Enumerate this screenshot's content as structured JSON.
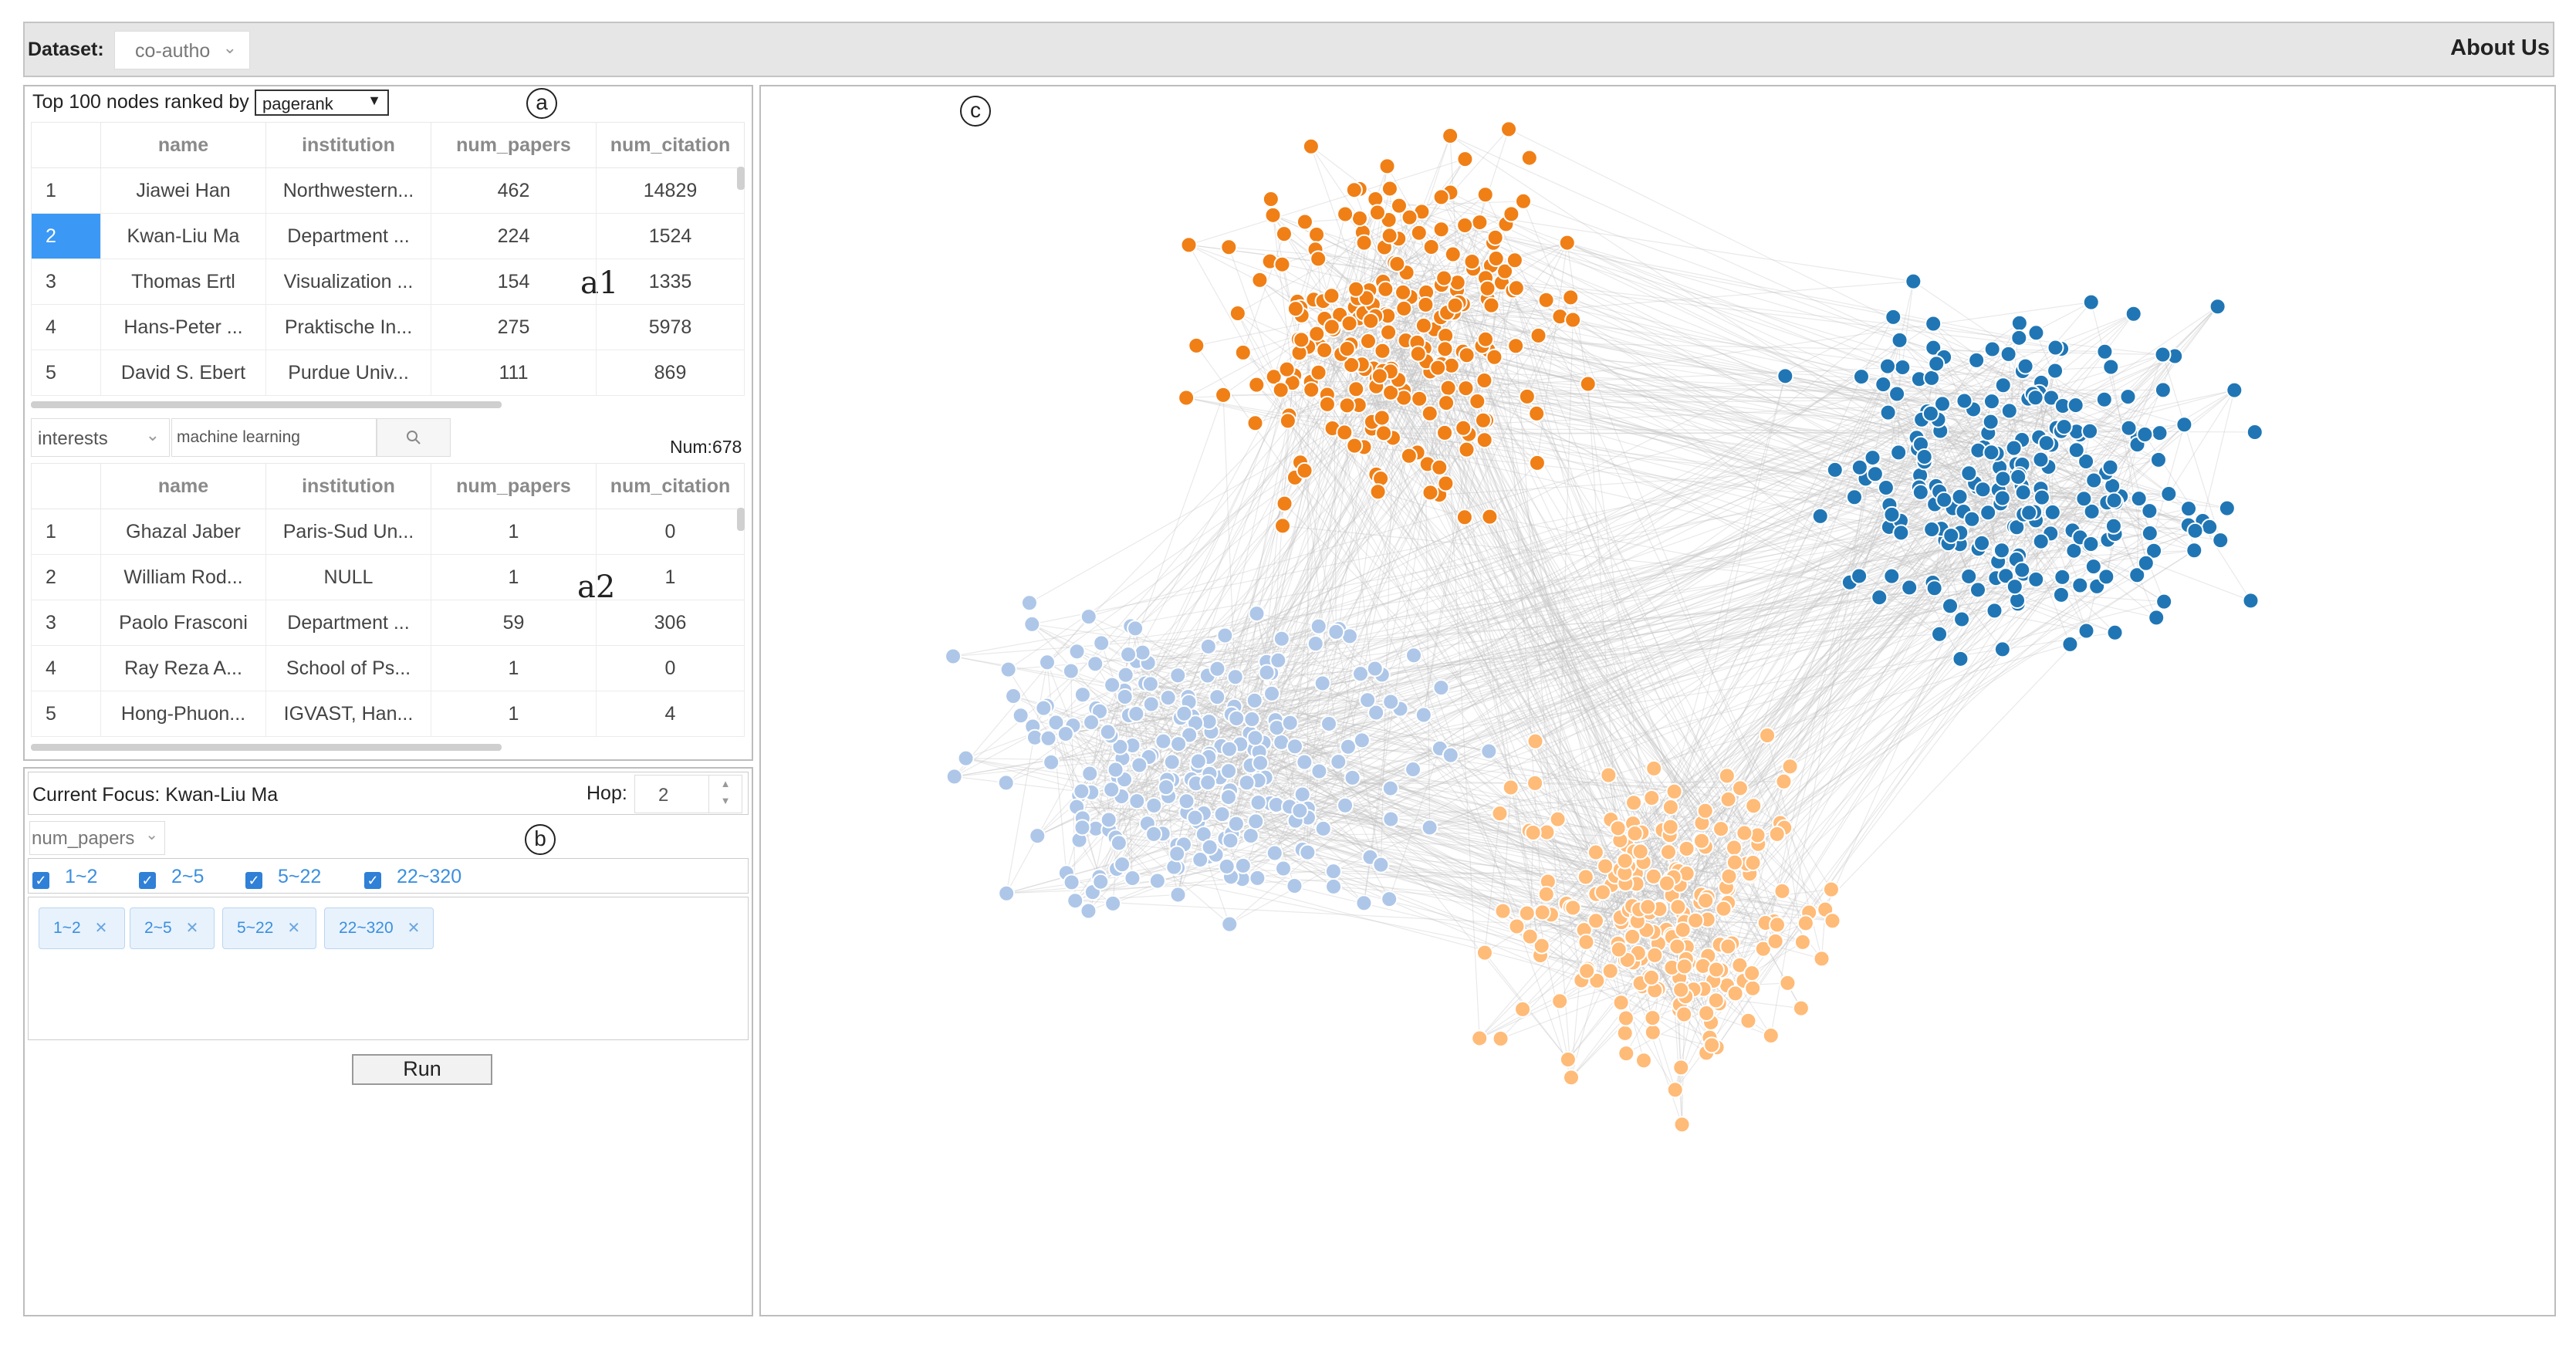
{
  "header": {
    "dataset_label": "Dataset:",
    "dataset_value": "co-autho",
    "about": "About Us"
  },
  "annotations": {
    "a": "a",
    "b": "b",
    "c": "c",
    "a1": "a1",
    "a2": "a2"
  },
  "ranking": {
    "label": "Top 100 nodes ranked by",
    "metric": "pagerank",
    "columns": [
      "name",
      "institution",
      "num_papers",
      "num_citation"
    ],
    "rows": [
      {
        "idx": "1",
        "name": "Jiawei Han",
        "institution": "Northwestern...",
        "num_papers": "462",
        "num_citation": "14829"
      },
      {
        "idx": "2",
        "name": "Kwan-Liu Ma",
        "institution": "Department ...",
        "num_papers": "224",
        "num_citation": "1524"
      },
      {
        "idx": "3",
        "name": "Thomas Ertl",
        "institution": "Visualization ...",
        "num_papers": "154",
        "num_citation": "1335"
      },
      {
        "idx": "4",
        "name": "Hans-Peter ...",
        "institution": "Praktische In...",
        "num_papers": "275",
        "num_citation": "5978"
      },
      {
        "idx": "5",
        "name": "David S. Ebert",
        "institution": "Purdue Univ...",
        "num_papers": "111",
        "num_citation": "869"
      }
    ]
  },
  "search": {
    "field": "interests",
    "query": "machine learning",
    "num_label": "Num:678",
    "columns": [
      "name",
      "institution",
      "num_papers",
      "num_citation"
    ],
    "rows": [
      {
        "idx": "1",
        "name": "Ghazal Jaber",
        "institution": "Paris-Sud Un...",
        "num_papers": "1",
        "num_citation": "0"
      },
      {
        "idx": "2",
        "name": "William Rod...",
        "institution": "NULL",
        "num_papers": "1",
        "num_citation": "1"
      },
      {
        "idx": "3",
        "name": "Paolo Frasconi",
        "institution": "Department ...",
        "num_papers": "59",
        "num_citation": "306"
      },
      {
        "idx": "4",
        "name": "Ray Reza A...",
        "institution": "School of Ps...",
        "num_papers": "1",
        "num_citation": "0"
      },
      {
        "idx": "5",
        "name": "Hong-Phuon...",
        "institution": "IGVAST, Han...",
        "num_papers": "1",
        "num_citation": "4"
      }
    ]
  },
  "focus": {
    "label": "Current Focus: Kwan-Liu Ma",
    "hop_label": "Hop:",
    "hop_value": "2",
    "attribute": "num_papers",
    "ranges": [
      "1~2",
      "2~5",
      "5~22",
      "22~320"
    ],
    "run_label": "Run"
  },
  "graph": {
    "clusters": [
      {
        "color": "#f07f16",
        "count": 230
      },
      {
        "color": "#2076b4",
        "count": 230
      },
      {
        "color": "#aec7e8",
        "count": 240
      },
      {
        "color": "#ffbb78",
        "count": 220
      }
    ],
    "edge_color": "#bfbfbf"
  }
}
